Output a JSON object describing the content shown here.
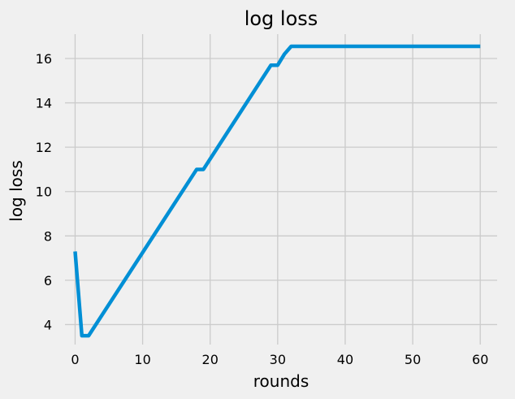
{
  "chart_data": {
    "type": "line",
    "title": "log loss",
    "xlabel": "rounds",
    "ylabel": "log loss",
    "xlim": [
      -1.5,
      62.5
    ],
    "ylim": [
      3.1,
      17.1
    ],
    "xticks": [
      0,
      10,
      20,
      30,
      40,
      50,
      60
    ],
    "yticks": [
      4,
      6,
      8,
      10,
      12,
      14,
      16
    ],
    "grid": true,
    "legend": "none",
    "colors": {
      "background": "#f0f0f0",
      "grid": "#cbcbcb",
      "line": "#008fd5"
    },
    "series": [
      {
        "values": [
          [
            0,
            7.3
          ],
          [
            1,
            3.5
          ],
          [
            2,
            3.5
          ],
          [
            18,
            11.0
          ],
          [
            19,
            11.0
          ],
          [
            29,
            15.7
          ],
          [
            30,
            15.7
          ],
          [
            31,
            16.2
          ],
          [
            32,
            16.55
          ],
          [
            60,
            16.55
          ]
        ]
      }
    ]
  }
}
